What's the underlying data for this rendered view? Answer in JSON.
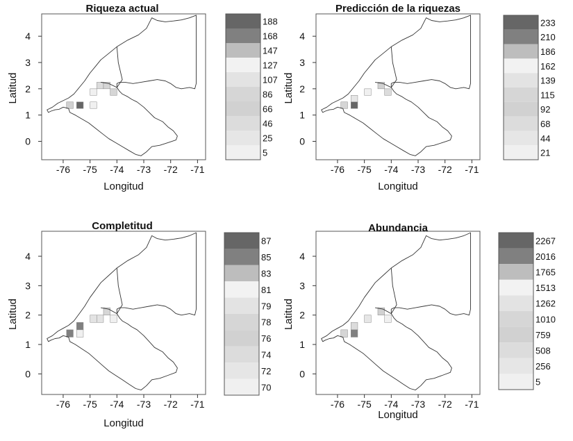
{
  "figure": {
    "panels": [
      {
        "title": "Riqueza actual",
        "xlabel": "Longitud",
        "ylabel": "Latitud",
        "legend_values": [
          "188",
          "168",
          "147",
          "127",
          "107",
          "86",
          "66",
          "46",
          "25",
          "5"
        ]
      },
      {
        "title": "Predicción de la riquezas",
        "xlabel": "Longitud",
        "ylabel": "Latitud",
        "legend_values": [
          "233",
          "210",
          "186",
          "162",
          "139",
          "115",
          "92",
          "68",
          "44",
          "21"
        ]
      },
      {
        "title": "Completitud",
        "xlabel": "Longitud",
        "ylabel": "Latitud",
        "legend_values": [
          "87",
          "85",
          "83",
          "81",
          "79",
          "78",
          "76",
          "74",
          "72",
          "70"
        ]
      },
      {
        "title": "Abundancia",
        "xlabel": "Longitud",
        "ylabel": "Latitud",
        "legend_values": [
          "2267",
          "2016",
          "1765",
          "1513",
          "1262",
          "1010",
          "759",
          "508",
          "256",
          "5"
        ]
      }
    ]
  },
  "chart_data": [
    {
      "type": "heatmap",
      "title": "Riqueza actual",
      "xlabel": "Longitud",
      "ylabel": "Latitud",
      "xlim": [
        -76.8,
        -70.7
      ],
      "ylim": [
        -0.7,
        4.85
      ],
      "xticks": [
        -76,
        -75,
        -74,
        -73,
        -72,
        -71
      ],
      "yticks": [
        0,
        1,
        2,
        3,
        4
      ],
      "legend_breaks": [
        188,
        168,
        147,
        127,
        107,
        86,
        66,
        46,
        25,
        5
      ],
      "legend_colors": [
        "#666666",
        "#808080",
        "#bdbdbd",
        "#f2f2f2",
        "#e3e3e3",
        "#d6d6d6",
        "#d1d1d1",
        "#dcdcdc",
        "#e6e6e6",
        "#f0f0f0"
      ],
      "cells": [
        {
          "lon": -75.75,
          "lat": 1.375,
          "value": 66
        },
        {
          "lon": -75.375,
          "lat": 1.375,
          "value": 188
        },
        {
          "lon": -74.875,
          "lat": 1.375,
          "value": 5
        },
        {
          "lon": -74.625,
          "lat": 2.125,
          "value": 46
        },
        {
          "lon": -74.875,
          "lat": 1.875,
          "value": 5
        },
        {
          "lon": -74.375,
          "lat": 2.125,
          "value": 86
        },
        {
          "lon": -74.125,
          "lat": 1.875,
          "value": 86
        }
      ]
    },
    {
      "type": "heatmap",
      "title": "Predicción de la riquezas",
      "xlabel": "Longitud",
      "ylabel": "Latitud",
      "xlim": [
        -76.8,
        -70.7
      ],
      "ylim": [
        -0.7,
        4.85
      ],
      "xticks": [
        -76,
        -75,
        -74,
        -73,
        -72,
        -71
      ],
      "yticks": [
        0,
        1,
        2,
        3,
        4
      ],
      "legend_breaks": [
        233,
        210,
        186,
        162,
        139,
        115,
        92,
        68,
        44,
        21
      ],
      "legend_colors": [
        "#666666",
        "#808080",
        "#bdbdbd",
        "#f2f2f2",
        "#e3e3e3",
        "#d6d6d6",
        "#d1d1d1",
        "#dcdcdc",
        "#e6e6e6",
        "#f0f0f0"
      ],
      "cells": [
        {
          "lon": -75.75,
          "lat": 1.375,
          "value": 115
        },
        {
          "lon": -75.375,
          "lat": 1.375,
          "value": 233
        },
        {
          "lon": -75.375,
          "lat": 1.625,
          "value": 44
        },
        {
          "lon": -74.875,
          "lat": 1.875,
          "value": 21
        },
        {
          "lon": -74.375,
          "lat": 2.125,
          "value": 92
        },
        {
          "lon": -74.125,
          "lat": 1.875,
          "value": 68
        }
      ]
    },
    {
      "type": "heatmap",
      "title": "Completitud",
      "xlabel": "Longitud",
      "ylabel": "Latitud",
      "xlim": [
        -76.8,
        -70.7
      ],
      "ylim": [
        -0.7,
        4.85
      ],
      "xticks": [
        -76,
        -75,
        -74,
        -73,
        -72,
        -71
      ],
      "yticks": [
        0,
        1,
        2,
        3,
        4
      ],
      "legend_breaks": [
        87,
        85,
        83,
        81,
        79,
        78,
        76,
        74,
        72,
        70
      ],
      "legend_colors": [
        "#666666",
        "#808080",
        "#bdbdbd",
        "#f2f2f2",
        "#e3e3e3",
        "#d6d6d6",
        "#d1d1d1",
        "#dcdcdc",
        "#e6e6e6",
        "#f0f0f0"
      ],
      "cells": [
        {
          "lon": -75.75,
          "lat": 1.375,
          "value": 85
        },
        {
          "lon": -75.375,
          "lat": 1.625,
          "value": 85
        },
        {
          "lon": -75.375,
          "lat": 1.375,
          "value": 70
        },
        {
          "lon": -74.875,
          "lat": 1.875,
          "value": 79
        },
        {
          "lon": -74.625,
          "lat": 1.875,
          "value": 79
        },
        {
          "lon": -74.375,
          "lat": 2.125,
          "value": 78
        },
        {
          "lon": -74.125,
          "lat": 1.875,
          "value": 70
        }
      ]
    },
    {
      "type": "heatmap",
      "title": "Abundancia",
      "xlabel": "Longitud",
      "ylabel": "Latitud",
      "xlim": [
        -76.8,
        -70.7
      ],
      "ylim": [
        -0.7,
        4.85
      ],
      "xticks": [
        -76,
        -75,
        -74,
        -73,
        -72,
        -71
      ],
      "yticks": [
        0,
        1,
        2,
        3,
        4
      ],
      "legend_breaks": [
        2267,
        2016,
        1765,
        1513,
        1262,
        1010,
        759,
        508,
        256,
        5
      ],
      "legend_colors": [
        "#666666",
        "#808080",
        "#bdbdbd",
        "#f2f2f2",
        "#e3e3e3",
        "#d6d6d6",
        "#d1d1d1",
        "#dcdcdc",
        "#e6e6e6",
        "#f0f0f0"
      ],
      "cells": [
        {
          "lon": -75.75,
          "lat": 1.375,
          "value": 1010
        },
        {
          "lon": -75.375,
          "lat": 1.375,
          "value": 2016
        },
        {
          "lon": -75.375,
          "lat": 1.625,
          "value": 508
        },
        {
          "lon": -74.875,
          "lat": 1.875,
          "value": 256
        },
        {
          "lon": -74.375,
          "lat": 2.125,
          "value": 759
        },
        {
          "lon": -74.125,
          "lat": 1.875,
          "value": 5
        }
      ]
    }
  ]
}
